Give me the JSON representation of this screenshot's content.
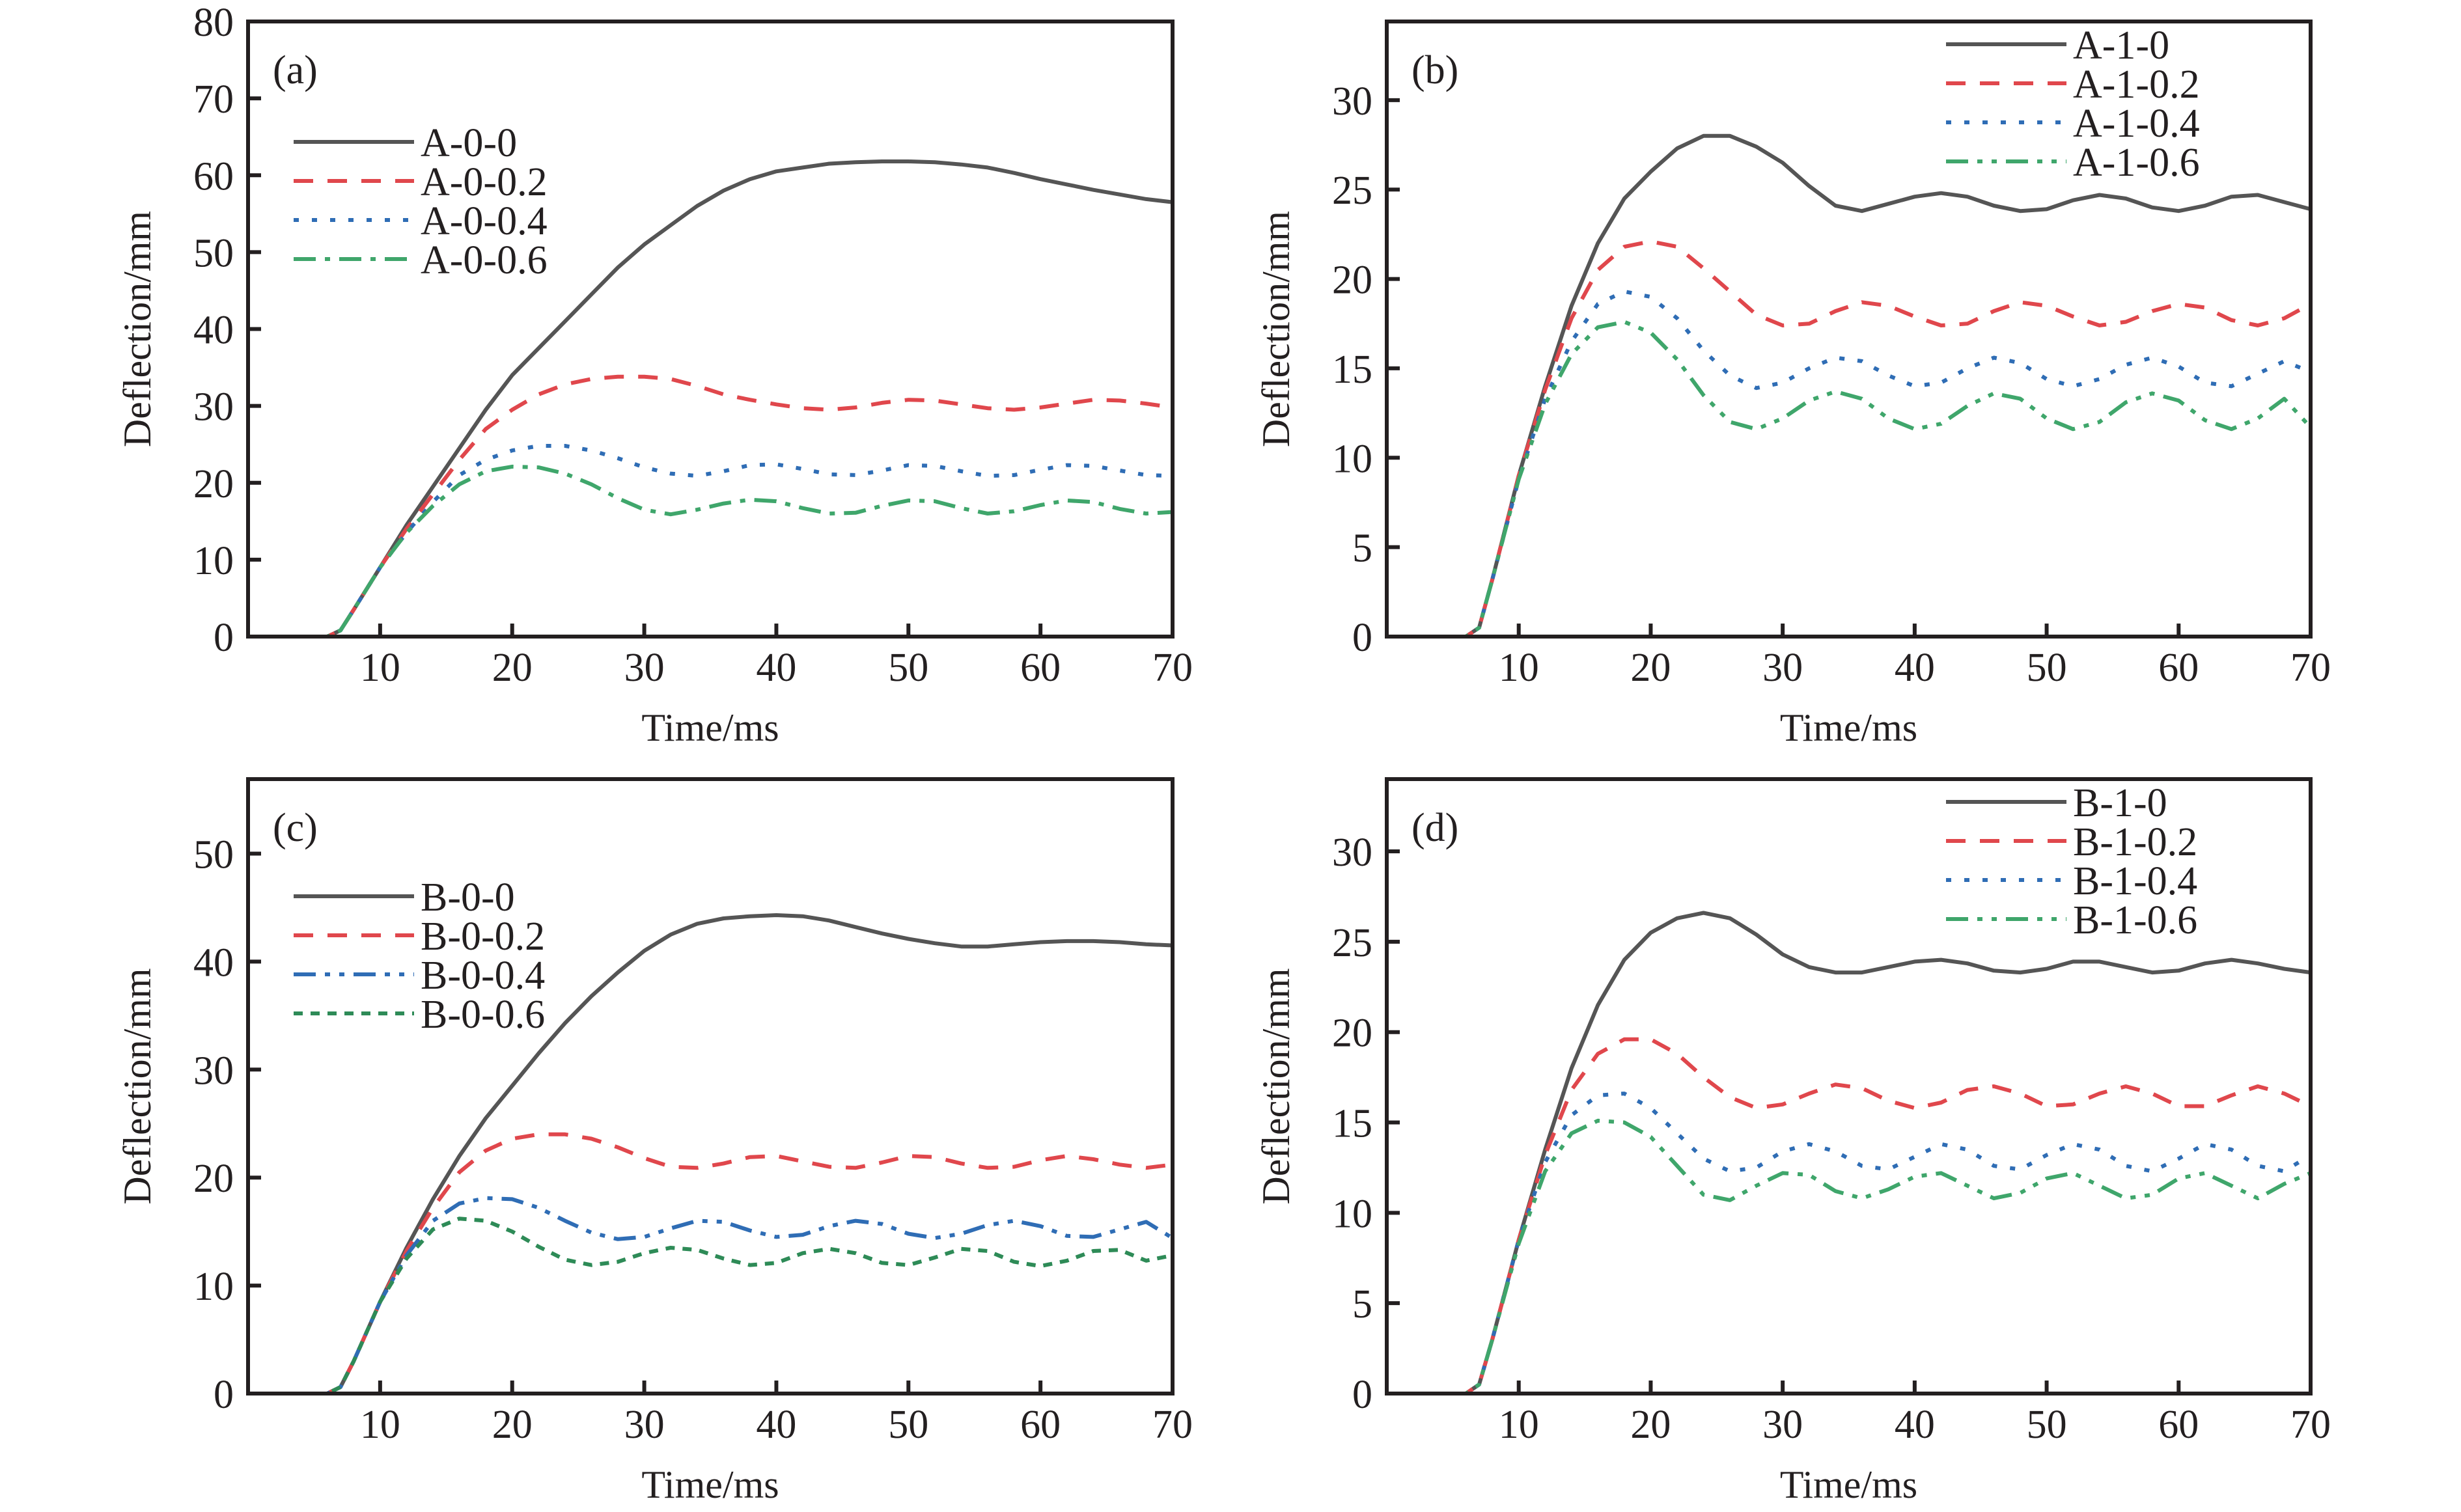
{
  "figure": {
    "panels_count": 4
  },
  "chart_data": [
    {
      "id": "a",
      "type": "line",
      "panel_label": "(a)",
      "title": "",
      "xlabel": "Time/ms",
      "ylabel": "Deflection/mm",
      "xlim": [
        0,
        70
      ],
      "ylim": [
        0,
        80
      ],
      "xticks": [
        10,
        20,
        30,
        40,
        50,
        60,
        70
      ],
      "yticks": [
        0,
        10,
        20,
        30,
        40,
        50,
        60,
        70,
        80
      ],
      "grid": false,
      "legend_position": "upper-left",
      "x": [
        0,
        6,
        7,
        8,
        10,
        12,
        14,
        16,
        18,
        20,
        22,
        24,
        26,
        28,
        30,
        32,
        34,
        36,
        38,
        40,
        42,
        44,
        46,
        48,
        50,
        52,
        54,
        56,
        58,
        60,
        62,
        64,
        66,
        68,
        70
      ],
      "series": [
        {
          "name": "A-0-0",
          "color": "#555555",
          "style": "solid",
          "values": [
            0,
            0,
            0.8,
            3.5,
            9,
            14.5,
            19.5,
            24.5,
            29.5,
            34,
            37.5,
            41,
            44.5,
            48,
            51,
            53.5,
            56,
            58,
            59.5,
            60.5,
            61,
            61.5,
            61.7,
            61.8,
            61.8,
            61.7,
            61.4,
            61,
            60.3,
            59.5,
            58.8,
            58.1,
            57.5,
            56.9,
            56.5
          ]
        },
        {
          "name": "A-0-0.2",
          "color": "#e0474c",
          "style": "dashed",
          "values": [
            0,
            0,
            0.8,
            3.5,
            9,
            14,
            18.5,
            23,
            27,
            29.5,
            31.5,
            32.8,
            33.5,
            33.8,
            33.8,
            33.5,
            32.6,
            31.5,
            30.8,
            30.2,
            29.7,
            29.5,
            29.8,
            30.4,
            30.8,
            30.7,
            30.2,
            29.7,
            29.5,
            29.8,
            30.3,
            30.8,
            30.7,
            30.3,
            29.8
          ]
        },
        {
          "name": "A-0-0.4",
          "color": "#2f6db5",
          "style": "dotted",
          "values": [
            0,
            0,
            0.8,
            3.5,
            9,
            13.5,
            17.5,
            21,
            23,
            24.2,
            24.8,
            24.8,
            24.2,
            23.2,
            22,
            21.2,
            20.9,
            21.5,
            22.3,
            22.4,
            21.8,
            21.1,
            21,
            21.6,
            22.3,
            22.2,
            21.5,
            20.9,
            21,
            21.7,
            22.3,
            22.2,
            21.6,
            21,
            20.9
          ]
        },
        {
          "name": "A-0-0.6",
          "color": "#3fa66b",
          "style": "dashdot",
          "values": [
            0,
            0,
            0.8,
            3.5,
            9,
            13.5,
            17,
            19.8,
            21.5,
            22.1,
            22,
            21.2,
            19.8,
            18,
            16.5,
            15.9,
            16.5,
            17.3,
            17.8,
            17.6,
            16.7,
            16,
            16.1,
            17,
            17.7,
            17.6,
            16.7,
            16,
            16.3,
            17.1,
            17.7,
            17.5,
            16.6,
            16,
            16.2
          ]
        }
      ]
    },
    {
      "id": "b",
      "type": "line",
      "panel_label": "(b)",
      "title": "",
      "xlabel": "Time/ms",
      "ylabel": "Deflection/mm",
      "xlim": [
        0,
        70
      ],
      "ylim": [
        0,
        34.4
      ],
      "xticks": [
        10,
        20,
        30,
        40,
        50,
        60,
        70
      ],
      "yticks": [
        0,
        5,
        10,
        15,
        20,
        25,
        30
      ],
      "grid": false,
      "legend_position": "upper-right",
      "x": [
        0,
        6,
        7,
        8,
        10,
        12,
        14,
        16,
        18,
        20,
        22,
        24,
        26,
        28,
        30,
        32,
        34,
        36,
        38,
        40,
        42,
        44,
        46,
        48,
        50,
        52,
        54,
        56,
        58,
        60,
        62,
        64,
        66,
        68,
        70
      ],
      "series": [
        {
          "name": "A-1-0",
          "color": "#555555",
          "style": "solid",
          "values": [
            0,
            0,
            0.5,
            3.2,
            9,
            14,
            18.5,
            22,
            24.5,
            26,
            27.3,
            28,
            28,
            27.4,
            26.5,
            25.2,
            24.1,
            23.8,
            24.2,
            24.6,
            24.8,
            24.6,
            24.1,
            23.8,
            23.9,
            24.4,
            24.7,
            24.5,
            24,
            23.8,
            24.1,
            24.6,
            24.7,
            24.3,
            23.9
          ]
        },
        {
          "name": "A-1-0.2",
          "color": "#e0474c",
          "style": "dashed",
          "values": [
            0,
            0,
            0.5,
            3.2,
            9,
            13.8,
            17.8,
            20.5,
            21.8,
            22.1,
            21.8,
            20.6,
            19.3,
            18,
            17.4,
            17.5,
            18.2,
            18.7,
            18.5,
            17.9,
            17.4,
            17.5,
            18.2,
            18.7,
            18.5,
            17.9,
            17.4,
            17.6,
            18.2,
            18.6,
            18.4,
            17.7,
            17.4,
            17.8,
            18.6
          ]
        },
        {
          "name": "A-1-0.4",
          "color": "#2f6db5",
          "style": "dotted",
          "values": [
            0,
            0,
            0.5,
            3.2,
            8.8,
            13.3,
            16.5,
            18.6,
            19.3,
            19,
            17.8,
            16,
            14.6,
            13.9,
            14.2,
            15,
            15.6,
            15.4,
            14.6,
            14,
            14.2,
            15,
            15.6,
            15.3,
            14.4,
            14,
            14.4,
            15.2,
            15.6,
            15.1,
            14.2,
            14,
            14.7,
            15.4,
            14.8
          ]
        },
        {
          "name": "A-1-0.6",
          "color": "#3fa66b",
          "style": "dashdotdot",
          "values": [
            0,
            0,
            0.5,
            3.2,
            8.8,
            13,
            15.8,
            17.3,
            17.6,
            17,
            15.5,
            13.5,
            12,
            11.6,
            12.2,
            13.2,
            13.7,
            13.3,
            12.2,
            11.6,
            11.9,
            12.9,
            13.6,
            13.3,
            12.2,
            11.6,
            12,
            13.1,
            13.6,
            13.2,
            12.1,
            11.6,
            12.2,
            13.3,
            11.7
          ]
        }
      ]
    },
    {
      "id": "c",
      "type": "line",
      "panel_label": "(c)",
      "title": "",
      "xlabel": "Time/ms",
      "ylabel": "Deflection/mm",
      "xlim": [
        0,
        70
      ],
      "ylim": [
        0,
        56.9
      ],
      "xticks": [
        10,
        20,
        30,
        40,
        50,
        60,
        70
      ],
      "yticks": [
        0,
        10,
        20,
        30,
        40,
        50
      ],
      "grid": false,
      "legend_position": "upper-left",
      "x": [
        0,
        6,
        7,
        8,
        10,
        12,
        14,
        16,
        18,
        20,
        22,
        24,
        26,
        28,
        30,
        32,
        34,
        36,
        38,
        40,
        42,
        44,
        46,
        48,
        50,
        52,
        54,
        56,
        58,
        60,
        62,
        64,
        66,
        68,
        70
      ],
      "series": [
        {
          "name": "B-0-0",
          "color": "#555555",
          "style": "solid",
          "values": [
            0,
            0,
            0.6,
            3,
            8.5,
            13.5,
            18,
            22,
            25.5,
            28.5,
            31.5,
            34.3,
            36.8,
            39,
            41,
            42.5,
            43.5,
            44,
            44.2,
            44.3,
            44.2,
            43.8,
            43.2,
            42.6,
            42.1,
            41.7,
            41.4,
            41.4,
            41.6,
            41.8,
            41.9,
            41.9,
            41.8,
            41.6,
            41.5
          ]
        },
        {
          "name": "B-0-0.2",
          "color": "#e0474c",
          "style": "dashed",
          "values": [
            0,
            0,
            0.6,
            3,
            8.5,
            13.2,
            17.2,
            20.5,
            22.5,
            23.6,
            24,
            24,
            23.6,
            22.8,
            21.8,
            21,
            20.9,
            21.3,
            21.9,
            22,
            21.5,
            21,
            20.9,
            21.4,
            22,
            21.9,
            21.3,
            20.9,
            21,
            21.6,
            22,
            21.7,
            21.2,
            20.9,
            21.2
          ]
        },
        {
          "name": "B-0-0.4",
          "color": "#2f6db5",
          "style": "dashdotdot",
          "values": [
            0,
            0,
            0.6,
            3,
            8.5,
            12.8,
            16,
            17.6,
            18.1,
            18,
            17.2,
            16,
            14.9,
            14.3,
            14.5,
            15.3,
            16,
            15.9,
            15.1,
            14.5,
            14.7,
            15.5,
            16,
            15.7,
            14.8,
            14.4,
            14.8,
            15.6,
            16,
            15.5,
            14.6,
            14.5,
            15.2,
            15.9,
            14.4
          ]
        },
        {
          "name": "B-0-0.6",
          "color": "#2e8b57",
          "style": "shortdash",
          "values": [
            0,
            0,
            0.6,
            3,
            8.5,
            12.5,
            15.2,
            16.2,
            16,
            15,
            13.6,
            12.4,
            11.9,
            12.2,
            13,
            13.5,
            13.3,
            12.5,
            11.9,
            12.1,
            13,
            13.4,
            13,
            12.1,
            11.9,
            12.6,
            13.4,
            13.2,
            12.2,
            11.8,
            12.3,
            13.2,
            13.3,
            12.3,
            12.8
          ]
        }
      ]
    },
    {
      "id": "d",
      "type": "line",
      "panel_label": "(d)",
      "title": "",
      "xlabel": "Time/ms",
      "ylabel": "Deflection/mm",
      "xlim": [
        0,
        70
      ],
      "ylim": [
        0,
        34
      ],
      "xticks": [
        10,
        20,
        30,
        40,
        50,
        60,
        70
      ],
      "yticks": [
        0,
        5,
        10,
        15,
        20,
        25,
        30
      ],
      "grid": false,
      "legend_position": "upper-right",
      "x": [
        0,
        6,
        7,
        8,
        10,
        12,
        14,
        16,
        18,
        20,
        22,
        24,
        26,
        28,
        30,
        32,
        34,
        36,
        38,
        40,
        42,
        44,
        46,
        48,
        50,
        52,
        54,
        56,
        58,
        60,
        62,
        64,
        66,
        68,
        70
      ],
      "series": [
        {
          "name": "B-1-0",
          "color": "#555555",
          "style": "solid",
          "values": [
            0,
            0,
            0.5,
            3,
            8.5,
            13.5,
            18,
            21.5,
            24,
            25.5,
            26.3,
            26.6,
            26.3,
            25.4,
            24.3,
            23.6,
            23.3,
            23.3,
            23.6,
            23.9,
            24,
            23.8,
            23.4,
            23.3,
            23.5,
            23.9,
            23.9,
            23.6,
            23.3,
            23.4,
            23.8,
            24,
            23.8,
            23.5,
            23.3
          ]
        },
        {
          "name": "B-1-0.2",
          "color": "#e0474c",
          "style": "dashed",
          "values": [
            0,
            0,
            0.5,
            3,
            8.5,
            13.2,
            16.8,
            18.8,
            19.6,
            19.6,
            18.8,
            17.5,
            16.4,
            15.8,
            16,
            16.6,
            17.1,
            16.9,
            16.2,
            15.8,
            16.1,
            16.8,
            17,
            16.6,
            15.9,
            16,
            16.6,
            17,
            16.6,
            15.9,
            15.9,
            16.5,
            17,
            16.6,
            15.9
          ]
        },
        {
          "name": "B-1-0.4",
          "color": "#2f6db5",
          "style": "dotted",
          "values": [
            0,
            0,
            0.5,
            3,
            8.5,
            12.8,
            15.4,
            16.5,
            16.6,
            15.8,
            14.4,
            13,
            12.3,
            12.5,
            13.4,
            13.8,
            13.4,
            12.6,
            12.4,
            13.1,
            13.8,
            13.5,
            12.6,
            12.4,
            13.2,
            13.8,
            13.5,
            12.6,
            12.3,
            13,
            13.8,
            13.5,
            12.6,
            12.3,
            13.2
          ]
        },
        {
          "name": "B-1-0.6",
          "color": "#3fa66b",
          "style": "dashdotdot",
          "values": [
            0,
            0,
            0.5,
            3,
            8.3,
            12.3,
            14.4,
            15.1,
            15,
            14.2,
            12.6,
            11,
            10.7,
            11.5,
            12.2,
            12.1,
            11.2,
            10.8,
            11.3,
            12,
            12.2,
            11.5,
            10.8,
            11.1,
            11.9,
            12.2,
            11.5,
            10.8,
            11,
            11.9,
            12.2,
            11.5,
            10.8,
            11.6,
            12.2
          ]
        }
      ]
    }
  ]
}
